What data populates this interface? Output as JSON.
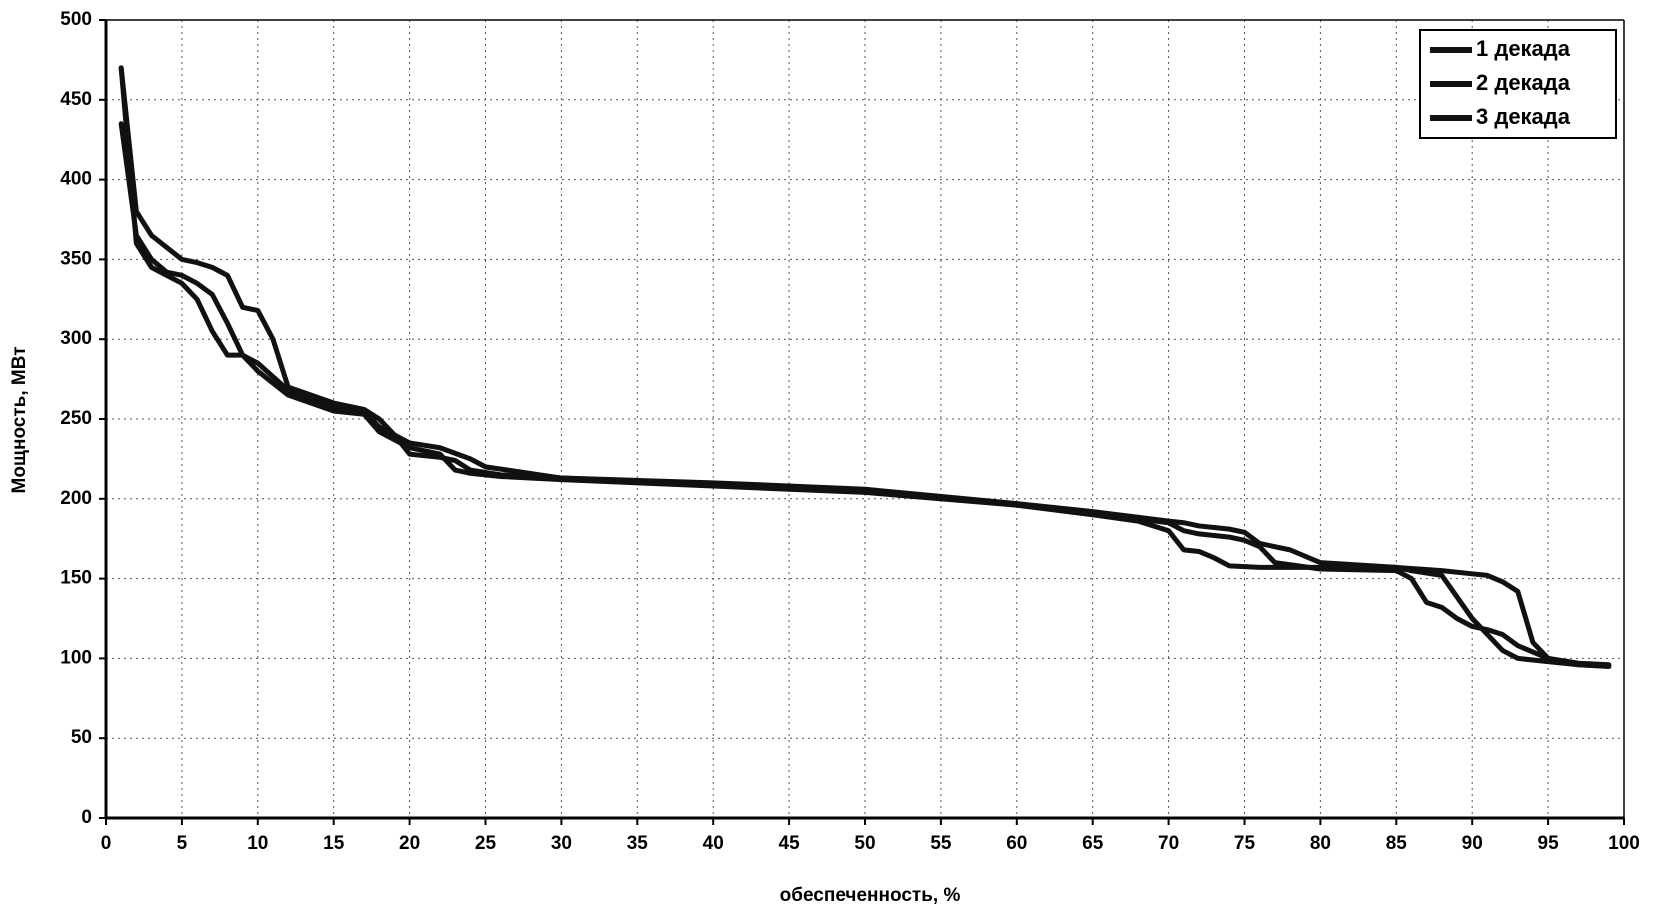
{
  "chart_data": {
    "type": "line",
    "xlabel": "обеспеченность, %",
    "ylabel": "Мощность, МВт",
    "xlim": [
      0,
      100
    ],
    "ylim": [
      0,
      500
    ],
    "xticks": [
      0,
      5,
      10,
      15,
      20,
      25,
      30,
      35,
      40,
      45,
      50,
      55,
      60,
      65,
      70,
      75,
      80,
      85,
      90,
      95,
      100
    ],
    "yticks": [
      0,
      50,
      100,
      150,
      200,
      250,
      300,
      350,
      400,
      450,
      500
    ],
    "grid": true,
    "legend": "upper right",
    "series": [
      {
        "name": "1 декада",
        "color": "#111111",
        "x": [
          1,
          2,
          3,
          5,
          6,
          7,
          8,
          9,
          10,
          11,
          12,
          15,
          17,
          18,
          19,
          20,
          22,
          24,
          25,
          30,
          40,
          50,
          60,
          65,
          70,
          71,
          72,
          73,
          74,
          75,
          76,
          78,
          80,
          85,
          88,
          90,
          91,
          92,
          93,
          94,
          95,
          97,
          99
        ],
        "values": [
          470,
          380,
          365,
          350,
          348,
          345,
          340,
          320,
          318,
          300,
          270,
          260,
          256,
          250,
          240,
          235,
          232,
          225,
          220,
          213,
          210,
          206,
          197,
          192,
          186,
          185,
          183,
          182,
          181,
          179,
          172,
          168,
          160,
          157,
          155,
          153,
          152,
          148,
          142,
          110,
          100,
          96,
          95
        ]
      },
      {
        "name": "2 декада",
        "color": "#111111",
        "x": [
          1,
          2,
          3,
          4,
          5,
          6,
          7,
          8,
          9,
          10,
          12,
          15,
          17,
          18,
          19,
          20,
          22,
          23,
          24,
          26,
          30,
          40,
          50,
          60,
          65,
          70,
          71,
          72,
          73,
          74,
          75,
          76,
          77,
          80,
          85,
          86,
          87,
          88,
          89,
          90,
          91,
          92,
          93,
          95,
          97,
          99
        ],
        "values": [
          435,
          365,
          350,
          342,
          340,
          335,
          328,
          310,
          290,
          285,
          268,
          258,
          255,
          245,
          240,
          228,
          226,
          224,
          218,
          215,
          213,
          209,
          205,
          196,
          191,
          185,
          180,
          178,
          177,
          176,
          174,
          170,
          160,
          156,
          155,
          150,
          135,
          132,
          125,
          120,
          118,
          115,
          108,
          100,
          97,
          96
        ]
      },
      {
        "name": "3 декада",
        "color": "#111111",
        "x": [
          1,
          2,
          3,
          4,
          5,
          6,
          7,
          8,
          9,
          10,
          12,
          15,
          17,
          18,
          20,
          22,
          23,
          24,
          26,
          30,
          40,
          50,
          60,
          65,
          68,
          70,
          71,
          72,
          73,
          74,
          76,
          80,
          85,
          86,
          88,
          90,
          92,
          93,
          95,
          97,
          99
        ],
        "values": [
          470,
          360,
          345,
          340,
          335,
          325,
          305,
          290,
          290,
          280,
          265,
          255,
          253,
          242,
          232,
          228,
          218,
          216,
          214,
          212,
          208,
          204,
          196,
          190,
          186,
          180,
          168,
          167,
          163,
          158,
          157,
          157,
          157,
          155,
          152,
          125,
          105,
          100,
          98,
          96,
          95
        ]
      }
    ]
  }
}
